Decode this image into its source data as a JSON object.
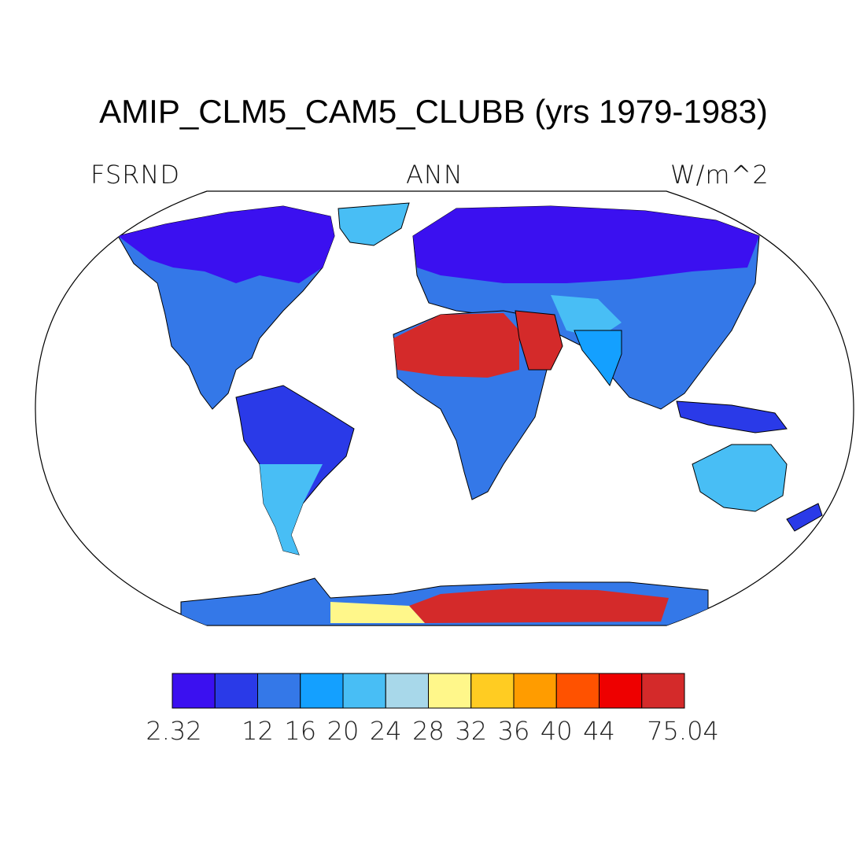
{
  "title": "AMIP_CLM5_CAM5_CLUBB (yrs 1979-1983)",
  "subtitle": {
    "left": "FSRND",
    "center": "ANN",
    "right": "W/m^2"
  },
  "colorbar": {
    "colors": [
      "#3b10f0",
      "#2a3ae8",
      "#3478e8",
      "#14a0ff",
      "#48bef5",
      "#a8d8ea",
      "#fff78a",
      "#ffcc22",
      "#ff9c00",
      "#ff5200",
      "#ee0000",
      "#d42a2a"
    ],
    "labels": [
      "2.32",
      "12",
      "16",
      "20",
      "24",
      "28",
      "32",
      "36",
      "40",
      "44",
      "75.04"
    ]
  },
  "map_legend": {
    "projection": "Robinson",
    "field": "FSRND",
    "season": "ANN"
  }
}
